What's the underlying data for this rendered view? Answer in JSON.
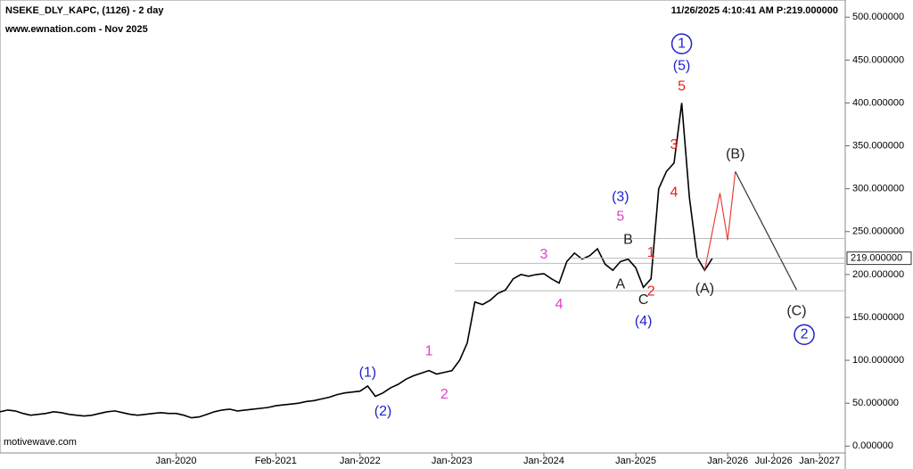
{
  "chart_data": {
    "type": "line",
    "title": "NSEKE_DLY_KAPC, (1126) - 2 day",
    "subtitle": "www.ewnation.com  - Nov 2025",
    "timestamp": "11/26/2025 4:10:41 AM  P:219.000000",
    "source": "motivewave.com",
    "x": [
      "Feb-2018",
      "Mar-2018",
      "Apr-2018",
      "May-2018",
      "Jun-2018",
      "Jul-2018",
      "Aug-2018",
      "Sep-2018",
      "Oct-2018",
      "Nov-2018",
      "Dec-2018",
      "Jan-2019",
      "Feb-2019",
      "Mar-2019",
      "Apr-2019",
      "May-2019",
      "Jun-2019",
      "Jul-2019",
      "Aug-2019",
      "Sep-2019",
      "Oct-2019",
      "Nov-2019",
      "Dec-2019",
      "Jan-2020",
      "Feb-2020",
      "Mar-2020",
      "Apr-2020",
      "May-2020",
      "Jun-2020",
      "Jul-2020",
      "Aug-2020",
      "Sep-2020",
      "Oct-2020",
      "Nov-2020",
      "Dec-2020",
      "Jan-2021",
      "Feb-2021",
      "Mar-2021",
      "Apr-2021",
      "May-2021",
      "Jun-2021",
      "Jul-2021",
      "Aug-2021",
      "Sep-2021",
      "Oct-2021",
      "Nov-2021",
      "Dec-2021",
      "Jan-2022",
      "Feb-2022",
      "Mar-2022",
      "Apr-2022",
      "May-2022",
      "Jun-2022",
      "Jul-2022",
      "Aug-2022",
      "Sep-2022",
      "Oct-2022",
      "Nov-2022",
      "Dec-2022",
      "Jan-2023",
      "Feb-2023",
      "Mar-2023",
      "Apr-2023",
      "May-2023",
      "Jun-2023",
      "Jul-2023",
      "Aug-2023",
      "Sep-2023",
      "Oct-2023",
      "Nov-2023",
      "Dec-2023",
      "Jan-2024",
      "Feb-2024",
      "Mar-2024",
      "Apr-2024",
      "May-2024",
      "Jun-2024",
      "Jul-2024",
      "Aug-2024",
      "Sep-2024",
      "Oct-2024",
      "Nov-2024",
      "Dec-2024",
      "Jan-2025",
      "Feb-2025",
      "Mar-2025",
      "Apr-2025",
      "May-2025",
      "Jun-2025",
      "Jul-2025",
      "Aug-2025",
      "Sep-2025",
      "Oct-2025",
      "Nov-2025"
    ],
    "series": [
      {
        "name": "NSEKE_DLY_KAPC",
        "color": "#000000",
        "values": [
          40,
          42,
          41,
          38,
          36,
          37,
          38,
          40,
          39,
          37,
          36,
          35,
          36,
          38,
          40,
          41,
          39,
          37,
          36,
          37,
          38,
          39,
          38,
          38,
          36,
          33,
          34,
          37,
          40,
          42,
          43,
          41,
          42,
          43,
          44,
          45,
          47,
          48,
          49,
          50,
          52,
          53,
          55,
          57,
          60,
          62,
          63,
          64,
          70,
          58,
          62,
          68,
          72,
          78,
          82,
          85,
          88,
          84,
          86,
          88,
          100,
          120,
          168,
          165,
          170,
          178,
          182,
          195,
          200,
          198,
          200,
          201,
          195,
          190,
          215,
          225,
          218,
          222,
          230,
          212,
          205,
          215,
          218,
          208,
          185,
          195,
          300,
          320,
          330,
          400,
          290,
          220,
          205,
          219
        ]
      }
    ],
    "projections": [
      {
        "color": "#e8403a",
        "x": [
          "Oct-2025",
          "Dec-2025",
          "Jan-2026",
          "Feb-2026"
        ],
        "values": [
          205,
          295,
          240,
          320
        ]
      },
      {
        "color": "#333333",
        "x": [
          "Feb-2026",
          "Oct-2026"
        ],
        "values": [
          320,
          182
        ]
      }
    ],
    "reference_lines": [
      242,
      213,
      181
    ],
    "last_price": {
      "value": 219,
      "label": "219.000000"
    },
    "annotations": [
      {
        "text": "(1)",
        "x": "Feb-2022",
        "y": 85,
        "color": "#2222cc"
      },
      {
        "text": "(2)",
        "x": "Apr-2022",
        "y": 40,
        "color": "#2222cc"
      },
      {
        "text": "1",
        "x": "Oct-2022",
        "y": 110,
        "color": "#e040d0"
      },
      {
        "text": "2",
        "x": "Dec-2022",
        "y": 60,
        "color": "#e040d0"
      },
      {
        "text": "3",
        "x": "Jan-2024",
        "y": 223,
        "color": "#e040d0"
      },
      {
        "text": "4",
        "x": "Mar-2024",
        "y": 165,
        "color": "#e040d0"
      },
      {
        "text": "5",
        "x": "Nov-2024",
        "y": 267,
        "color": "#e040d0"
      },
      {
        "text": "(3)",
        "x": "Nov-2024",
        "y": 290,
        "color": "#2222cc"
      },
      {
        "text": "A",
        "x": "Nov-2024",
        "y": 188,
        "color": "#222222"
      },
      {
        "text": "B",
        "x": "Dec-2024",
        "y": 240,
        "color": "#222222"
      },
      {
        "text": "C",
        "x": "Feb-2025",
        "y": 170,
        "color": "#222222"
      },
      {
        "text": "(4)",
        "x": "Feb-2025",
        "y": 145,
        "color": "#2222cc"
      },
      {
        "text": "1",
        "x": "Mar-2025",
        "y": 225,
        "color": "#e8201a"
      },
      {
        "text": "2",
        "x": "Mar-2025",
        "y": 180,
        "color": "#e8201a"
      },
      {
        "text": "3",
        "x": "Jun-2025",
        "y": 351,
        "color": "#e8201a"
      },
      {
        "text": "4",
        "x": "Jun-2025",
        "y": 295,
        "color": "#e8201a"
      },
      {
        "text": "5",
        "x": "Jul-2025",
        "y": 419,
        "color": "#e8201a"
      },
      {
        "text": "(5)",
        "x": "Jul-2025",
        "y": 443,
        "color": "#2222cc"
      },
      {
        "text": "1",
        "x": "Jul-2025",
        "y": 469,
        "color": "#2222cc",
        "circled": true
      },
      {
        "text": "(A)",
        "x": "Oct-2025",
        "y": 183,
        "color": "#222222"
      },
      {
        "text": "(B)",
        "x": "Feb-2026",
        "y": 340,
        "color": "#222222"
      },
      {
        "text": "(C)",
        "x": "Oct-2026",
        "y": 157,
        "color": "#222222"
      },
      {
        "text": "2",
        "x": "Nov-2026",
        "y": 130,
        "color": "#2222cc",
        "circled": true
      }
    ],
    "xlim": [
      "Feb-2018",
      "Apr-2027"
    ],
    "xticks": [
      "Jan-2020",
      "Feb-2021",
      "Jan-2022",
      "Jan-2023",
      "Jan-2024",
      "Jan-2025",
      "Jan-2026",
      "Jul-2026",
      "Jan-2027"
    ],
    "ylim": [
      -8,
      520
    ],
    "yticks": [
      {
        "value": 0,
        "label": "0.000000"
      },
      {
        "value": 50,
        "label": "50.000000"
      },
      {
        "value": 100,
        "label": "100.000000"
      },
      {
        "value": 150,
        "label": "150.000000"
      },
      {
        "value": 200,
        "label": "200.000000"
      },
      {
        "value": 250,
        "label": "250.000000"
      },
      {
        "value": 300,
        "label": "300.000000"
      },
      {
        "value": 350,
        "label": "350.000000"
      },
      {
        "value": 400,
        "label": "400.000000"
      },
      {
        "value": 450,
        "label": "450.000000"
      },
      {
        "value": 500,
        "label": "500.000000"
      }
    ]
  }
}
